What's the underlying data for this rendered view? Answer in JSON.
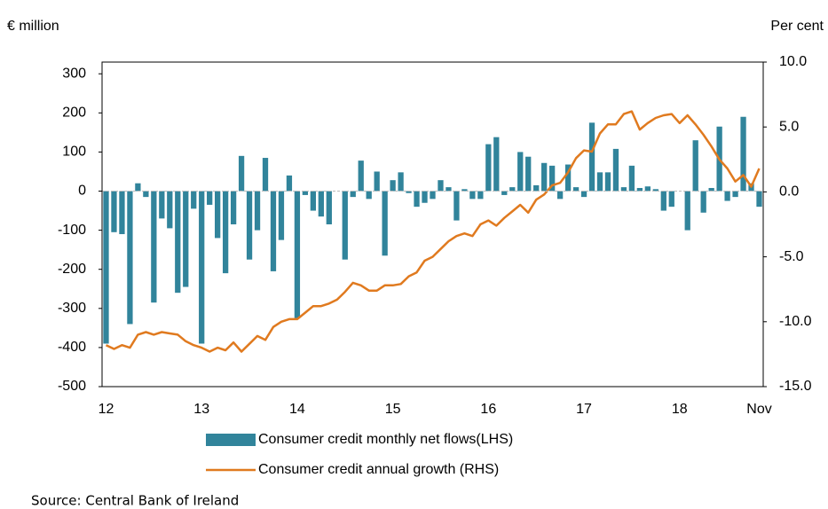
{
  "chart_data": {
    "type": "bar_line",
    "left_axis_label": "€ million",
    "right_axis_label": "Per cent",
    "source": "Source: Central Bank of Ireland",
    "categories": [
      "12",
      null,
      null,
      null,
      null,
      null,
      null,
      null,
      null,
      null,
      null,
      null,
      "13",
      null,
      null,
      null,
      null,
      null,
      null,
      null,
      null,
      null,
      null,
      null,
      "14",
      null,
      null,
      null,
      null,
      null,
      null,
      null,
      null,
      null,
      null,
      null,
      "15",
      null,
      null,
      null,
      null,
      null,
      null,
      null,
      null,
      null,
      null,
      null,
      "16",
      null,
      null,
      null,
      null,
      null,
      null,
      null,
      null,
      null,
      null,
      null,
      "17",
      null,
      null,
      null,
      null,
      null,
      null,
      null,
      null,
      null,
      null,
      null,
      "18",
      null,
      null,
      null,
      null,
      null,
      null,
      null,
      null,
      null,
      "Nov"
    ],
    "series": [
      {
        "name": "Consumer credit monthly net flows(LHS)",
        "color": "#31849b",
        "axis": "y",
        "values": [
          -390,
          -105,
          -110,
          -340,
          20,
          -15,
          -285,
          -70,
          -95,
          -260,
          -245,
          -45,
          -390,
          -35,
          -120,
          -210,
          -85,
          90,
          -175,
          -100,
          85,
          -205,
          -125,
          40,
          -325,
          -10,
          -50,
          -65,
          -85,
          0,
          -175,
          -15,
          78,
          -20,
          50,
          -165,
          28,
          48,
          -5,
          -40,
          -30,
          -20,
          28,
          10,
          -75,
          5,
          -20,
          -20,
          120,
          138,
          -10,
          10,
          100,
          88,
          15,
          72,
          65,
          -20,
          68,
          10,
          -15,
          175,
          48,
          48,
          108,
          10,
          65,
          8,
          12,
          5,
          -50,
          -40,
          0,
          -100,
          130,
          -55,
          8,
          165,
          -25,
          -15,
          190,
          20,
          -40
        ]
      },
      {
        "name": "Consumer credit annual growth (RHS)",
        "color": "#e07a1f",
        "axis": "y2",
        "values": [
          -11.8,
          -12.1,
          -11.8,
          -12.0,
          -11.0,
          -10.8,
          -11.0,
          -10.8,
          -10.9,
          -11.0,
          -11.5,
          -11.8,
          -12.0,
          -12.3,
          -12.0,
          -12.2,
          -11.6,
          -12.3,
          -11.7,
          -11.1,
          -11.4,
          -10.4,
          -10.0,
          -9.8,
          -9.8,
          -9.3,
          -8.8,
          -8.8,
          -8.6,
          -8.3,
          -7.7,
          -7.0,
          -7.2,
          -7.6,
          -7.6,
          -7.2,
          -7.2,
          -7.1,
          -6.5,
          -6.2,
          -5.3,
          -5.0,
          -4.4,
          -3.8,
          -3.4,
          -3.2,
          -3.4,
          -2.5,
          -2.2,
          -2.6,
          -2.0,
          -1.5,
          -1.0,
          -1.6,
          -0.6,
          -0.2,
          0.5,
          0.7,
          1.5,
          2.6,
          3.2,
          3.1,
          4.5,
          5.2,
          5.2,
          6.0,
          6.2,
          4.8,
          5.3,
          5.7,
          5.9,
          6.0,
          5.3,
          5.9,
          5.2,
          4.4,
          3.5,
          2.5,
          1.8,
          0.8,
          1.3,
          0.4,
          1.8
        ]
      }
    ],
    "ylim": [
      -500,
      330
    ],
    "yticks": [
      -500,
      -400,
      -300,
      -200,
      -100,
      0,
      100,
      200,
      300
    ],
    "y2lim": [
      -15,
      10
    ],
    "y2ticks": [
      {
        "value": -15,
        "label": "-15.0"
      },
      {
        "value": -10,
        "label": "-10.0"
      },
      {
        "value": -5,
        "label": "-5.0"
      },
      {
        "value": 0,
        "label": "0.0"
      },
      {
        "value": 5,
        "label": "5.0"
      },
      {
        "value": 10,
        "label": "10.0"
      }
    ],
    "grid": false
  }
}
